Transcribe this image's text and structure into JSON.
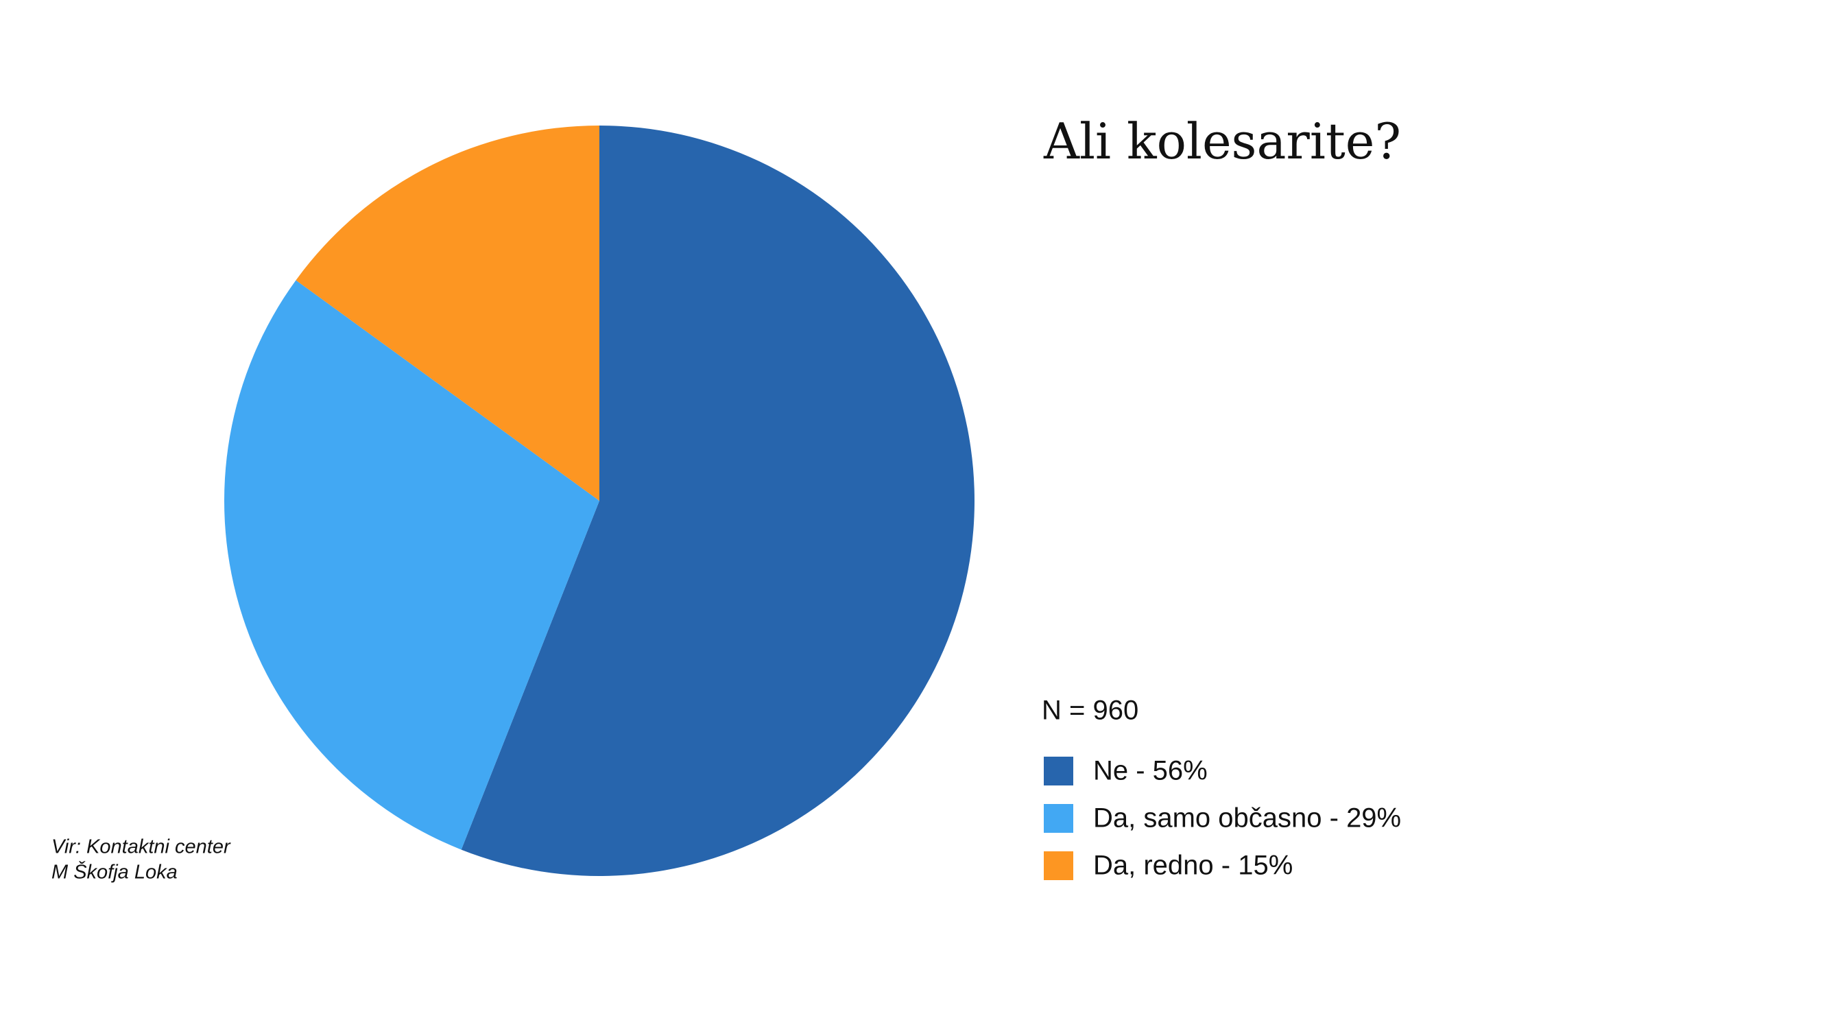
{
  "chart_data": {
    "type": "pie",
    "title": "Ali kolesarite?",
    "note": "N = 960",
    "source": [
      "Vir: Kontaktni center",
      "M Škofja Loka"
    ],
    "categories": [
      "Ne - 56%",
      "Da, samo občasno - 29%",
      "Da, redno - 15%"
    ],
    "values": [
      56,
      29,
      15
    ],
    "colors": [
      "#2765ad",
      "#42a8f3",
      "#fd9622"
    ],
    "start_angle": 0,
    "direction": "clockwise",
    "legend": "right"
  }
}
